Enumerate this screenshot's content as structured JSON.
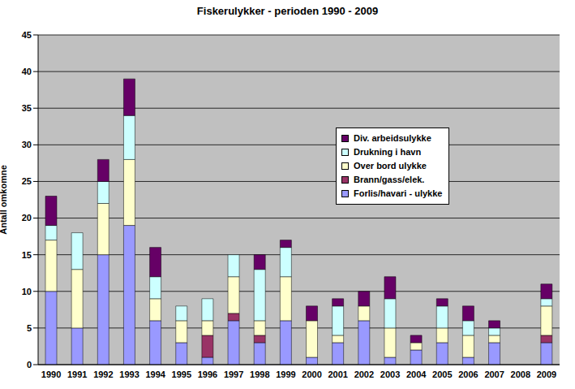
{
  "chart_data": {
    "type": "bar",
    "title": "Fiskerulykker - perioden 1990 - 2009",
    "y_label": "Antall omkomne",
    "categories": [
      "1990",
      "1991",
      "1992",
      "1993",
      "1994",
      "1995",
      "1996",
      "1997",
      "1998",
      "1999",
      "2000",
      "2001",
      "2002",
      "2003",
      "2004",
      "2005",
      "2006",
      "2007",
      "2008",
      "2009"
    ],
    "stacked": true,
    "grid": true,
    "legend": "inside",
    "ylim": [
      0,
      45
    ],
    "yticks": [
      0,
      5,
      10,
      15,
      20,
      25,
      30,
      35,
      40,
      45
    ],
    "series": [
      {
        "name": "Forlis/havari - ulykke",
        "color": "#9999FF",
        "values": [
          10,
          5,
          15,
          19,
          6,
          3,
          1,
          6,
          3,
          6,
          1,
          3,
          6,
          1,
          2,
          3,
          1,
          3,
          0,
          3
        ]
      },
      {
        "name": "Brann/gass/elek.",
        "color": "#993366",
        "values": [
          0,
          0,
          0,
          0,
          0,
          0,
          3,
          1,
          1,
          0,
          0,
          0,
          0,
          0,
          0,
          0,
          0,
          0,
          0,
          1
        ]
      },
      {
        "name": "Over bord ulykke",
        "color": "#FFFFCC",
        "values": [
          7,
          8,
          7,
          9,
          3,
          3,
          2,
          5,
          2,
          6,
          5,
          1,
          2,
          4,
          1,
          2,
          3,
          1,
          0,
          4
        ]
      },
      {
        "name": "Drukning i havn",
        "color": "#CCFFFF",
        "values": [
          2,
          5,
          3,
          6,
          3,
          2,
          3,
          3,
          7,
          4,
          0,
          4,
          0,
          4,
          0,
          3,
          2,
          1,
          0,
          1
        ]
      },
      {
        "name": "Div. arbeidsulykke",
        "color": "#660066",
        "values": [
          4,
          0,
          3,
          5,
          4,
          0,
          0,
          0,
          2,
          1,
          2,
          1,
          2,
          3,
          1,
          1,
          2,
          1,
          0,
          2
        ]
      }
    ]
  }
}
